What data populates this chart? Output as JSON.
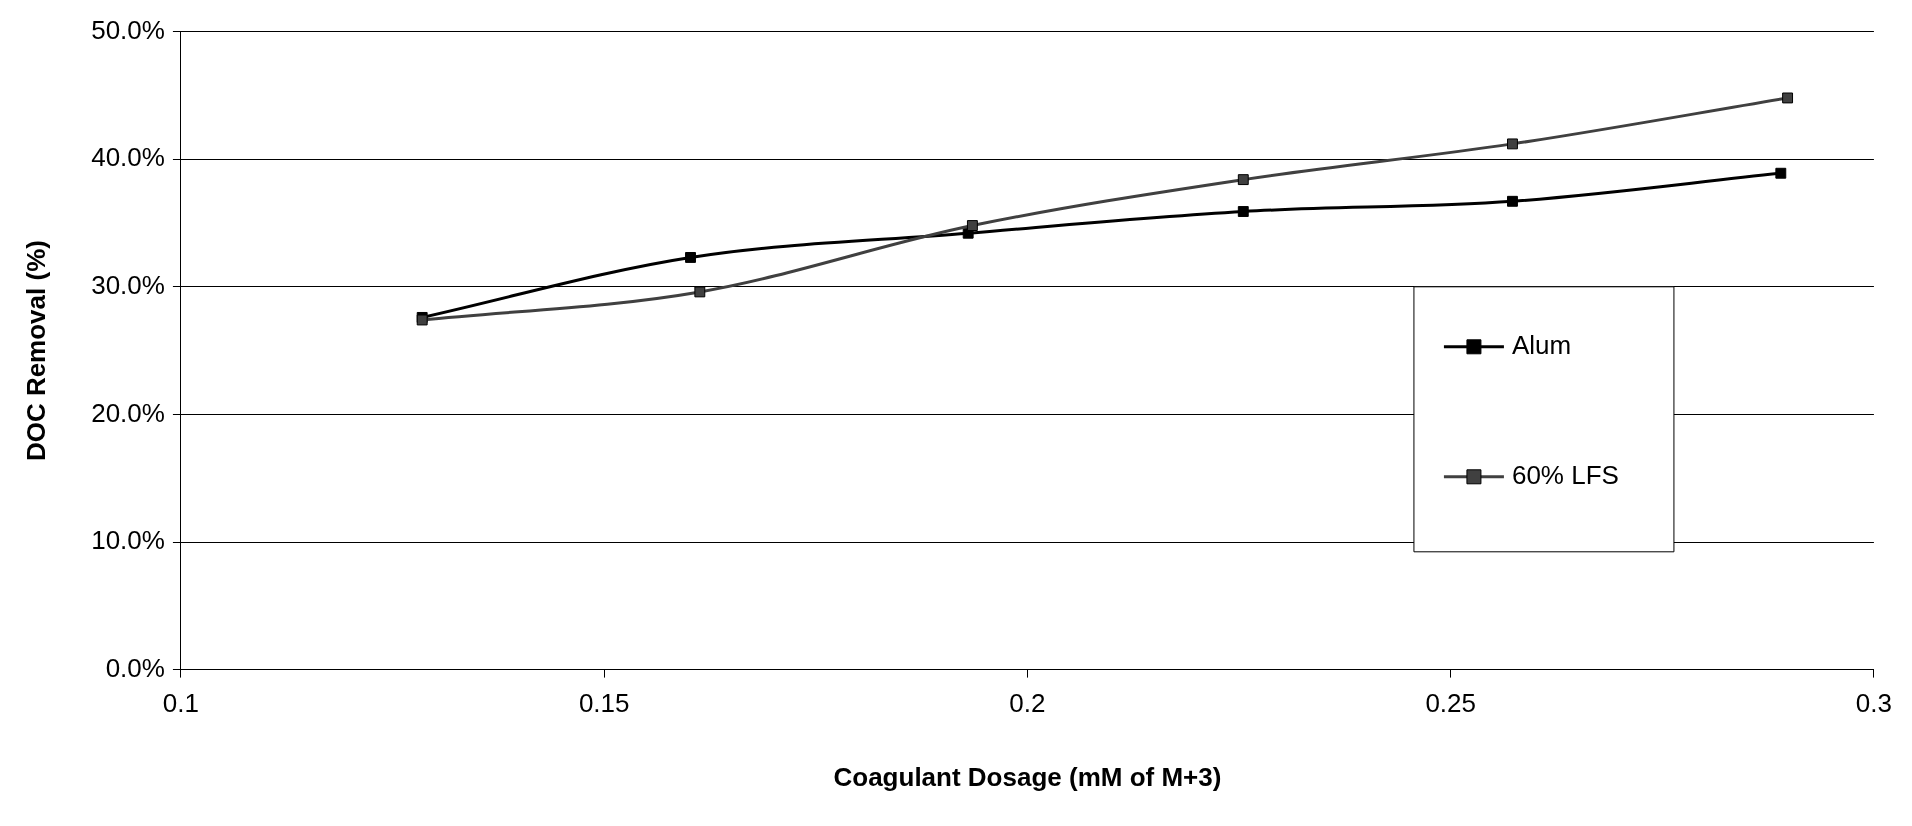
{
  "chart_data": {
    "type": "line",
    "xlabel": "Coagulant Dosage (mM of M+3)",
    "ylabel": "DOC Removal (%)",
    "xlim": [
      0.1,
      0.3
    ],
    "xticks": [
      0.1,
      0.15,
      0.2,
      0.25,
      0.3
    ],
    "ylim": [
      0,
      50
    ],
    "yticks": [
      {
        "value": 0,
        "label": "0.0%"
      },
      {
        "value": 10,
        "label": "10.0%"
      },
      {
        "value": 20,
        "label": "20.0%"
      },
      {
        "value": 30,
        "label": "30.0%"
      },
      {
        "value": 40,
        "label": "40.0%"
      },
      {
        "value": 50,
        "label": "50.0%"
      }
    ],
    "grid": "y",
    "legend": "right",
    "marker": "square",
    "line_style": "solid",
    "series": [
      {
        "name": "Alum",
        "color": "#000000",
        "x": [
          0.1285,
          0.1602,
          0.193,
          0.2255,
          0.2573,
          0.289
        ],
        "values": [
          27.6,
          32.3,
          34.2,
          35.9,
          36.7,
          38.9
        ]
      },
      {
        "name": "60% LFS",
        "color": "#404040",
        "x": [
          0.1285,
          0.1613,
          0.1935,
          0.2255,
          0.2573,
          0.2898
        ],
        "values": [
          27.4,
          29.6,
          34.8,
          38.4,
          41.2,
          44.8
        ]
      }
    ]
  }
}
